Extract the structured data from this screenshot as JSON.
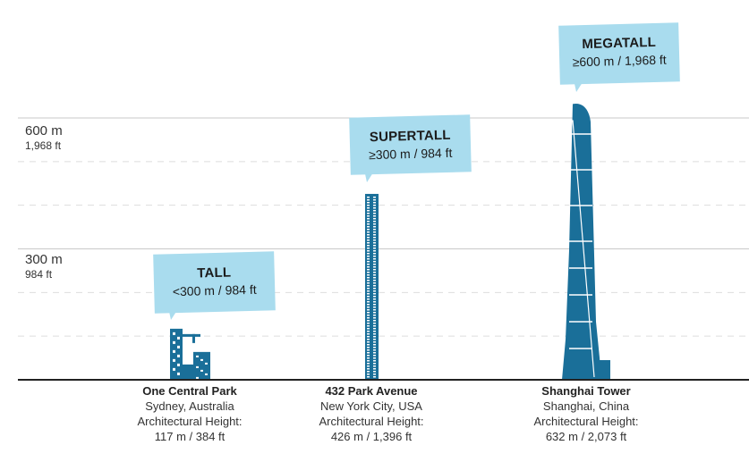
{
  "axis": {
    "ticks": [
      {
        "value": 300,
        "m_label": "300 m",
        "ft_label": "984 ft"
      },
      {
        "value": 600,
        "m_label": "600 m",
        "ft_label": "1,968 ft"
      }
    ],
    "dashed_interval_m": 100,
    "max_m": 600
  },
  "categories": [
    {
      "name": "TALL",
      "range": "<300 m / 984 ft"
    },
    {
      "name": "SUPERTALL",
      "range": "≥300 m / 984 ft"
    },
    {
      "name": "MEGATALL",
      "range": "≥600 m / 1,968 ft"
    }
  ],
  "buildings": [
    {
      "name": "One Central Park",
      "location": "Sydney, Australia",
      "height_label": "Architectural Height:",
      "height": "117 m / 384 ft",
      "height_m": 117
    },
    {
      "name": "432 Park Avenue",
      "location": "New York City, USA",
      "height_label": "Architectural Height:",
      "height": "426 m / 1,396 ft",
      "height_m": 426
    },
    {
      "name": "Shanghai Tower",
      "location": "Shanghai, China",
      "height_label": "Architectural Height:",
      "height": "632 m / 2,073 ft",
      "height_m": 632
    }
  ],
  "colors": {
    "building": "#1a6f99",
    "callout": "#a9dcee",
    "grid": "#cccccc",
    "baseline": "#222222"
  }
}
